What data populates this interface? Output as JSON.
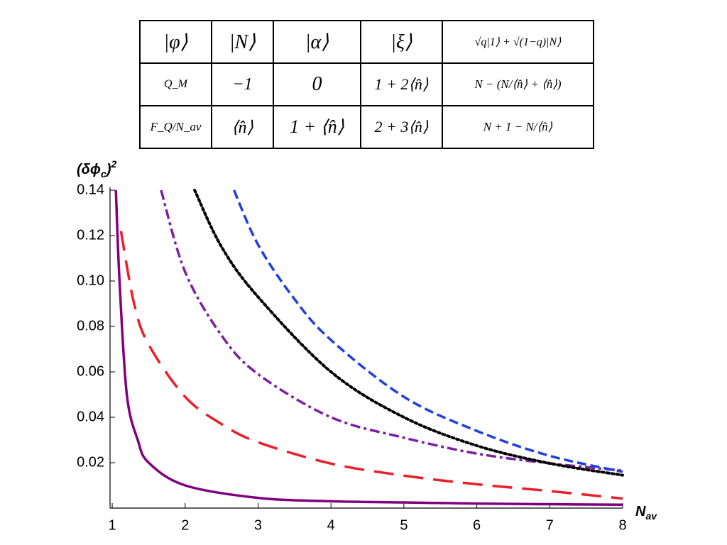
{
  "table": {
    "rows": [
      [
        "|φ⟩",
        "|N⟩",
        "|α⟩",
        "|ξ⟩",
        "√q|1⟩ + √(1−q)|N⟩"
      ],
      [
        "Q_M",
        "−1",
        "0",
        "1 + 2⟨n̂⟩",
        "N − (N/⟨n̂⟩ + ⟨n̂⟩)"
      ],
      [
        "F_Q/N_av",
        "⟨n̂⟩",
        "1 + ⟨n̂⟩",
        "2 + 3⟨n̂⟩",
        "N + 1 − N/⟨n̂⟩"
      ]
    ]
  },
  "chart_data": {
    "type": "line",
    "ylabel_parts": [
      "(δϕ",
      "c",
      ")",
      "2"
    ],
    "xlabel_parts": [
      "N",
      "av"
    ],
    "xlim": [
      0.97,
      8
    ],
    "ylim": [
      0,
      0.14
    ],
    "xticks": [
      1,
      2,
      3,
      4,
      5,
      6,
      7,
      8
    ],
    "yticks": [
      0.02,
      0.04,
      0.06,
      0.08,
      {
        "value": 0.1,
        "label": "0.10"
      },
      0.12,
      0.14
    ],
    "series": [
      {
        "color": "#e8202a",
        "dash": "28,14",
        "x": [
          1.12,
          1.3,
          1.5,
          2,
          2.5,
          3,
          4,
          5,
          6,
          7,
          8
        ],
        "values": [
          0.122,
          0.09,
          0.072,
          0.049,
          0.037,
          0.029,
          0.0196,
          0.0143,
          0.0105,
          0.0075,
          0.0042
        ]
      },
      {
        "color": "#7b1fa2",
        "dash": "14,5,4,5",
        "x": [
          1.67,
          2,
          2.5,
          3,
          4,
          5,
          6,
          7,
          8
        ],
        "values": [
          0.14,
          0.104,
          0.076,
          0.059,
          0.04,
          0.031,
          0.024,
          0.0197,
          0.0165
        ]
      },
      {
        "color": "#000000",
        "dash": "3,4",
        "x": [
          2.13,
          2.5,
          3,
          4,
          5,
          6,
          7,
          8
        ],
        "values": [
          0.14,
          0.115,
          0.093,
          0.06,
          0.04,
          0.0275,
          0.0197,
          0.0145
        ]
      },
      {
        "color": "#1f3fe0",
        "dash": "13,6",
        "x": [
          2.67,
          3,
          3.5,
          4,
          5,
          6,
          7,
          8
        ],
        "values": [
          0.14,
          0.116,
          0.092,
          0.074,
          0.049,
          0.034,
          0.023,
          0.016
        ]
      },
      {
        "color": "#800080",
        "dash": "",
        "x": [
          1.05,
          1.1,
          1.2,
          1.35,
          1.5,
          2,
          3,
          4,
          5,
          6,
          7,
          8
        ],
        "values": [
          0.14,
          0.1,
          0.05,
          0.03,
          0.02,
          0.01,
          0.0045,
          0.003,
          0.0025,
          0.002,
          0.0017,
          0.0015
        ]
      }
    ]
  }
}
